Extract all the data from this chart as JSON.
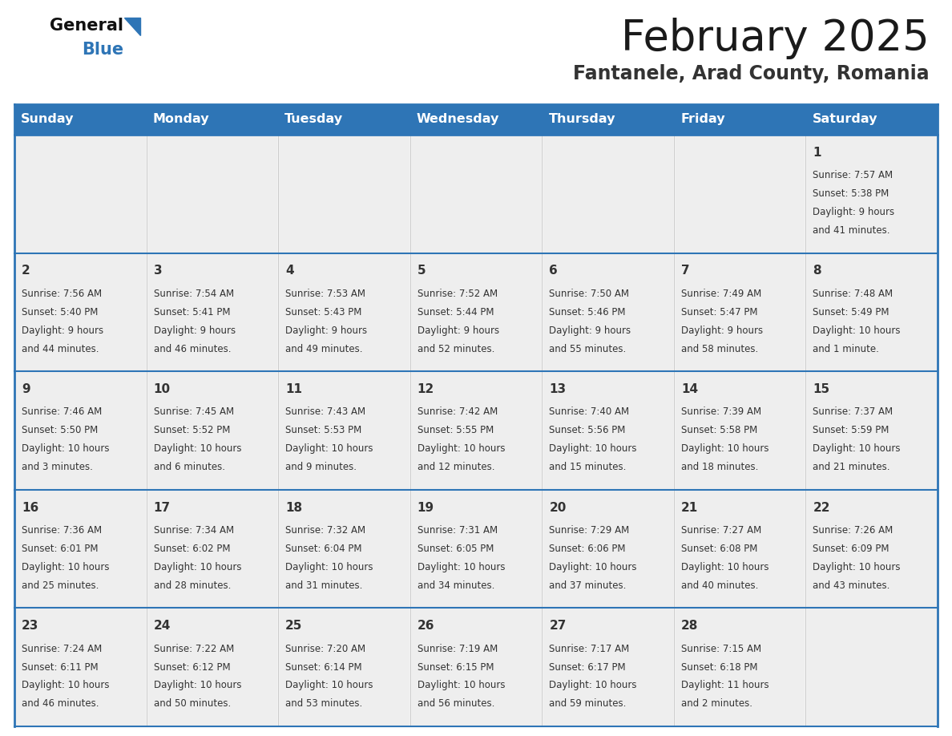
{
  "title": "February 2025",
  "subtitle": "Fantanele, Arad County, Romania",
  "header_bg": "#2E75B6",
  "header_text": "#FFFFFF",
  "cell_bg_light": "#EEEEEE",
  "cell_bg_white": "#FFFFFF",
  "border_color": "#2E75B6",
  "text_color": "#333333",
  "day_headers": [
    "Sunday",
    "Monday",
    "Tuesday",
    "Wednesday",
    "Thursday",
    "Friday",
    "Saturday"
  ],
  "days": [
    {
      "day": 1,
      "col": 6,
      "row": 0,
      "sunrise": "7:57 AM",
      "sunset": "5:38 PM",
      "daylight_line1": "Daylight: 9 hours",
      "daylight_line2": "and 41 minutes."
    },
    {
      "day": 2,
      "col": 0,
      "row": 1,
      "sunrise": "7:56 AM",
      "sunset": "5:40 PM",
      "daylight_line1": "Daylight: 9 hours",
      "daylight_line2": "and 44 minutes."
    },
    {
      "day": 3,
      "col": 1,
      "row": 1,
      "sunrise": "7:54 AM",
      "sunset": "5:41 PM",
      "daylight_line1": "Daylight: 9 hours",
      "daylight_line2": "and 46 minutes."
    },
    {
      "day": 4,
      "col": 2,
      "row": 1,
      "sunrise": "7:53 AM",
      "sunset": "5:43 PM",
      "daylight_line1": "Daylight: 9 hours",
      "daylight_line2": "and 49 minutes."
    },
    {
      "day": 5,
      "col": 3,
      "row": 1,
      "sunrise": "7:52 AM",
      "sunset": "5:44 PM",
      "daylight_line1": "Daylight: 9 hours",
      "daylight_line2": "and 52 minutes."
    },
    {
      "day": 6,
      "col": 4,
      "row": 1,
      "sunrise": "7:50 AM",
      "sunset": "5:46 PM",
      "daylight_line1": "Daylight: 9 hours",
      "daylight_line2": "and 55 minutes."
    },
    {
      "day": 7,
      "col": 5,
      "row": 1,
      "sunrise": "7:49 AM",
      "sunset": "5:47 PM",
      "daylight_line1": "Daylight: 9 hours",
      "daylight_line2": "and 58 minutes."
    },
    {
      "day": 8,
      "col": 6,
      "row": 1,
      "sunrise": "7:48 AM",
      "sunset": "5:49 PM",
      "daylight_line1": "Daylight: 10 hours",
      "daylight_line2": "and 1 minute."
    },
    {
      "day": 9,
      "col": 0,
      "row": 2,
      "sunrise": "7:46 AM",
      "sunset": "5:50 PM",
      "daylight_line1": "Daylight: 10 hours",
      "daylight_line2": "and 3 minutes."
    },
    {
      "day": 10,
      "col": 1,
      "row": 2,
      "sunrise": "7:45 AM",
      "sunset": "5:52 PM",
      "daylight_line1": "Daylight: 10 hours",
      "daylight_line2": "and 6 minutes."
    },
    {
      "day": 11,
      "col": 2,
      "row": 2,
      "sunrise": "7:43 AM",
      "sunset": "5:53 PM",
      "daylight_line1": "Daylight: 10 hours",
      "daylight_line2": "and 9 minutes."
    },
    {
      "day": 12,
      "col": 3,
      "row": 2,
      "sunrise": "7:42 AM",
      "sunset": "5:55 PM",
      "daylight_line1": "Daylight: 10 hours",
      "daylight_line2": "and 12 minutes."
    },
    {
      "day": 13,
      "col": 4,
      "row": 2,
      "sunrise": "7:40 AM",
      "sunset": "5:56 PM",
      "daylight_line1": "Daylight: 10 hours",
      "daylight_line2": "and 15 minutes."
    },
    {
      "day": 14,
      "col": 5,
      "row": 2,
      "sunrise": "7:39 AM",
      "sunset": "5:58 PM",
      "daylight_line1": "Daylight: 10 hours",
      "daylight_line2": "and 18 minutes."
    },
    {
      "day": 15,
      "col": 6,
      "row": 2,
      "sunrise": "7:37 AM",
      "sunset": "5:59 PM",
      "daylight_line1": "Daylight: 10 hours",
      "daylight_line2": "and 21 minutes."
    },
    {
      "day": 16,
      "col": 0,
      "row": 3,
      "sunrise": "7:36 AM",
      "sunset": "6:01 PM",
      "daylight_line1": "Daylight: 10 hours",
      "daylight_line2": "and 25 minutes."
    },
    {
      "day": 17,
      "col": 1,
      "row": 3,
      "sunrise": "7:34 AM",
      "sunset": "6:02 PM",
      "daylight_line1": "Daylight: 10 hours",
      "daylight_line2": "and 28 minutes."
    },
    {
      "day": 18,
      "col": 2,
      "row": 3,
      "sunrise": "7:32 AM",
      "sunset": "6:04 PM",
      "daylight_line1": "Daylight: 10 hours",
      "daylight_line2": "and 31 minutes."
    },
    {
      "day": 19,
      "col": 3,
      "row": 3,
      "sunrise": "7:31 AM",
      "sunset": "6:05 PM",
      "daylight_line1": "Daylight: 10 hours",
      "daylight_line2": "and 34 minutes."
    },
    {
      "day": 20,
      "col": 4,
      "row": 3,
      "sunrise": "7:29 AM",
      "sunset": "6:06 PM",
      "daylight_line1": "Daylight: 10 hours",
      "daylight_line2": "and 37 minutes."
    },
    {
      "day": 21,
      "col": 5,
      "row": 3,
      "sunrise": "7:27 AM",
      "sunset": "6:08 PM",
      "daylight_line1": "Daylight: 10 hours",
      "daylight_line2": "and 40 minutes."
    },
    {
      "day": 22,
      "col": 6,
      "row": 3,
      "sunrise": "7:26 AM",
      "sunset": "6:09 PM",
      "daylight_line1": "Daylight: 10 hours",
      "daylight_line2": "and 43 minutes."
    },
    {
      "day": 23,
      "col": 0,
      "row": 4,
      "sunrise": "7:24 AM",
      "sunset": "6:11 PM",
      "daylight_line1": "Daylight: 10 hours",
      "daylight_line2": "and 46 minutes."
    },
    {
      "day": 24,
      "col": 1,
      "row": 4,
      "sunrise": "7:22 AM",
      "sunset": "6:12 PM",
      "daylight_line1": "Daylight: 10 hours",
      "daylight_line2": "and 50 minutes."
    },
    {
      "day": 25,
      "col": 2,
      "row": 4,
      "sunrise": "7:20 AM",
      "sunset": "6:14 PM",
      "daylight_line1": "Daylight: 10 hours",
      "daylight_line2": "and 53 minutes."
    },
    {
      "day": 26,
      "col": 3,
      "row": 4,
      "sunrise": "7:19 AM",
      "sunset": "6:15 PM",
      "daylight_line1": "Daylight: 10 hours",
      "daylight_line2": "and 56 minutes."
    },
    {
      "day": 27,
      "col": 4,
      "row": 4,
      "sunrise": "7:17 AM",
      "sunset": "6:17 PM",
      "daylight_line1": "Daylight: 10 hours",
      "daylight_line2": "and 59 minutes."
    },
    {
      "day": 28,
      "col": 5,
      "row": 4,
      "sunrise": "7:15 AM",
      "sunset": "6:18 PM",
      "daylight_line1": "Daylight: 11 hours",
      "daylight_line2": "and 2 minutes."
    }
  ]
}
